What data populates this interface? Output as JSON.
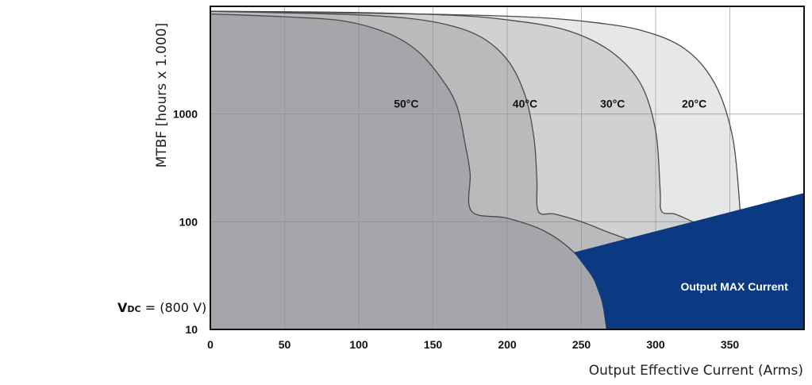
{
  "chart_data": {
    "type": "area",
    "ylabel": "MTBF [hours x 1.000]",
    "xlabel": "Output Effective Current (Arms)",
    "x_ticks": [
      0,
      50,
      100,
      150,
      200,
      250,
      300,
      350
    ],
    "xlim": [
      0,
      400
    ],
    "y_scale": "log",
    "y_ticks": [
      10,
      100,
      1000
    ],
    "ylim": [
      10,
      10000
    ],
    "grid": true,
    "series": [
      {
        "name": "20°C",
        "color": "#e6e7e9",
        "label_at": [
          326,
          1000
        ],
        "points": [
          [
            0,
            9000
          ],
          [
            140,
            8500
          ],
          [
            210,
            8000
          ],
          [
            250,
            7300
          ],
          [
            290,
            6000
          ],
          [
            320,
            4000
          ],
          [
            340,
            1900
          ],
          [
            352,
            600
          ],
          [
            357,
            125
          ]
        ]
      },
      {
        "name": "30°C",
        "color": "#d0d1d3",
        "label_at": [
          271,
          1000
        ],
        "points": [
          [
            0,
            9000
          ],
          [
            90,
            8800
          ],
          [
            160,
            8300
          ],
          [
            200,
            7500
          ],
          [
            240,
            6000
          ],
          [
            270,
            3800
          ],
          [
            290,
            1900
          ],
          [
            300,
            700
          ],
          [
            303,
            200
          ],
          [
            304,
            125
          ],
          [
            313,
            118
          ],
          [
            325,
            100
          ],
          [
            338,
            83
          ]
        ]
      },
      {
        "name": "40°C",
        "color": "#b9babc",
        "label_at": [
          212,
          1000
        ],
        "points": [
          [
            0,
            9000
          ],
          [
            50,
            8700
          ],
          [
            110,
            8200
          ],
          [
            150,
            7200
          ],
          [
            180,
            5400
          ],
          [
            200,
            3200
          ],
          [
            212,
            1500
          ],
          [
            218,
            600
          ],
          [
            220,
            250
          ],
          [
            221,
            125
          ],
          [
            232,
            118
          ],
          [
            250,
            100
          ],
          [
            268,
            80
          ],
          [
            286,
            65
          ]
        ]
      },
      {
        "name": "50°C",
        "color": "#a5a6a9",
        "label_at": [
          132,
          1000
        ],
        "points": [
          [
            0,
            8500
          ],
          [
            50,
            8000
          ],
          [
            90,
            7300
          ],
          [
            120,
            5600
          ],
          [
            140,
            3800
          ],
          [
            155,
            2200
          ],
          [
            166,
            1200
          ],
          [
            172,
            500
          ],
          [
            175,
            280
          ],
          [
            176,
            125
          ],
          [
            200,
            108
          ],
          [
            225,
            82
          ],
          [
            245,
            52
          ],
          [
            258,
            30
          ],
          [
            264,
            18
          ],
          [
            267,
            10
          ]
        ]
      }
    ],
    "max_current_region": {
      "label": "Output MAX Current",
      "color": "#0b3a82",
      "polygon": [
        [
          245,
          52
        ],
        [
          400,
          185
        ],
        [
          400,
          10
        ],
        [
          267,
          10
        ],
        [
          264,
          18
        ],
        [
          258,
          30
        ]
      ]
    }
  },
  "vdc_note": {
    "symbol": "V",
    "subscript": "DC",
    "value": "= (800 V)"
  }
}
